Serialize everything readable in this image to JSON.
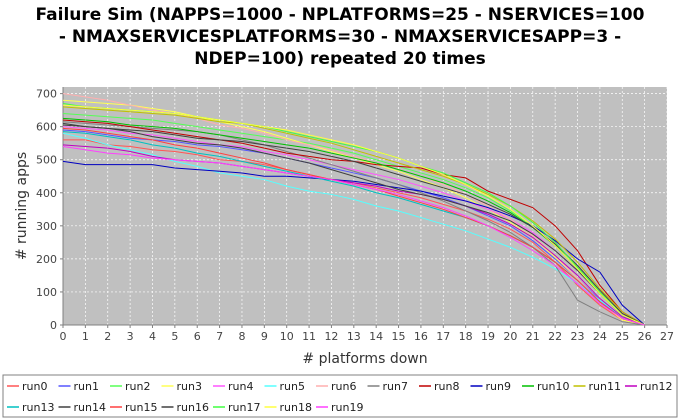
{
  "chart_data": {
    "type": "line",
    "title_lines": [
      "Failure Sim (NAPPS=1000 - NPLATFORMS=25 - NSERVICES=100",
      "- NMAXSERVICESPLATFORMS=30 - NMAXSERVICESAPP=3 -",
      "NDEP=100) repeated 20 times"
    ],
    "xlabel": "# platforms down",
    "ylabel": "# running apps",
    "xlim": [
      0,
      27
    ],
    "ylim": [
      0,
      720
    ],
    "x_ticks": [
      0,
      1,
      2,
      3,
      4,
      5,
      6,
      7,
      8,
      9,
      10,
      11,
      12,
      13,
      14,
      15,
      16,
      17,
      18,
      19,
      20,
      21,
      22,
      23,
      24,
      25,
      26,
      27
    ],
    "y_ticks": [
      0,
      100,
      200,
      300,
      400,
      500,
      600,
      700
    ],
    "grid": true,
    "background": "#c0c0c0",
    "legend_position": "bottom",
    "x": [
      0,
      1,
      2,
      3,
      4,
      5,
      6,
      7,
      8,
      9,
      10,
      11,
      12,
      13,
      14,
      15,
      16,
      17,
      18,
      19,
      20,
      21,
      22,
      23,
      24,
      25,
      26
    ],
    "series": [
      {
        "name": "run0",
        "color": "#ff5555",
        "values": [
          560,
          560,
          545,
          540,
          530,
          525,
          515,
          500,
          495,
          485,
          470,
          455,
          440,
          430,
          415,
          400,
          385,
          365,
          345,
          320,
          290,
          250,
          190,
          120,
          60,
          15,
          0
        ]
      },
      {
        "name": "run1",
        "color": "#5555ff",
        "values": [
          590,
          585,
          575,
          565,
          560,
          555,
          545,
          540,
          530,
          520,
          505,
          490,
          475,
          460,
          445,
          425,
          405,
          385,
          360,
          330,
          300,
          255,
          200,
          140,
          75,
          20,
          0
        ]
      },
      {
        "name": "run2",
        "color": "#55ff55",
        "values": [
          640,
          635,
          630,
          625,
          620,
          610,
          600,
          590,
          580,
          570,
          560,
          550,
          535,
          520,
          500,
          480,
          460,
          440,
          415,
          385,
          345,
          300,
          240,
          170,
          95,
          30,
          0
        ]
      },
      {
        "name": "run3",
        "color": "#ffff55",
        "values": [
          680,
          675,
          670,
          665,
          655,
          645,
          630,
          615,
          600,
          585,
          565,
          545,
          525,
          505,
          485,
          465,
          440,
          415,
          385,
          350,
          310,
          265,
          205,
          140,
          70,
          15,
          0
        ]
      },
      {
        "name": "run4",
        "color": "#ff55ff",
        "values": [
          600,
          595,
          590,
          580,
          575,
          565,
          555,
          545,
          540,
          525,
          515,
          500,
          485,
          470,
          455,
          440,
          420,
          400,
          375,
          350,
          320,
          280,
          225,
          165,
          95,
          30,
          0
        ]
      },
      {
        "name": "run5",
        "color": "#55ffff",
        "values": [
          580,
          565,
          545,
          530,
          515,
          495,
          480,
          460,
          450,
          440,
          420,
          405,
          395,
          380,
          360,
          345,
          325,
          305,
          285,
          260,
          235,
          205,
          170,
          125,
          75,
          25,
          0
        ]
      },
      {
        "name": "run6",
        "color": "#ffafaf",
        "values": [
          700,
          690,
          680,
          665,
          650,
          640,
          625,
          605,
          595,
          580,
          560,
          545,
          530,
          510,
          490,
          470,
          450,
          425,
          395,
          360,
          320,
          270,
          210,
          140,
          70,
          20,
          0
        ]
      },
      {
        "name": "run7",
        "color": "#808080",
        "values": [
          615,
          610,
          605,
          600,
          595,
          590,
          585,
          575,
          560,
          545,
          525,
          505,
          485,
          465,
          445,
          425,
          400,
          375,
          345,
          315,
          280,
          235,
          180,
          75,
          40,
          10,
          0
        ]
      },
      {
        "name": "run8",
        "color": "#c00000",
        "values": [
          620,
          615,
          610,
          600,
          590,
          580,
          570,
          560,
          550,
          535,
          520,
          510,
          500,
          495,
          485,
          480,
          475,
          455,
          445,
          405,
          380,
          355,
          300,
          225,
          120,
          40,
          0
        ]
      },
      {
        "name": "run9",
        "color": "#0000c0",
        "values": [
          495,
          485,
          485,
          485,
          485,
          475,
          470,
          465,
          460,
          450,
          450,
          445,
          440,
          435,
          425,
          415,
          405,
          390,
          375,
          355,
          330,
          300,
          255,
          200,
          160,
          60,
          0
        ]
      },
      {
        "name": "run10",
        "color": "#00c000",
        "values": [
          625,
          620,
          615,
          605,
          600,
          595,
          585,
          575,
          565,
          555,
          545,
          535,
          520,
          505,
          490,
          470,
          450,
          430,
          405,
          375,
          340,
          295,
          240,
          170,
          95,
          30,
          0
        ]
      },
      {
        "name": "run11",
        "color": "#c0c000",
        "values": [
          660,
          655,
          650,
          645,
          640,
          635,
          625,
          615,
          610,
          595,
          580,
          565,
          550,
          530,
          510,
          490,
          470,
          450,
          425,
          395,
          360,
          315,
          260,
          190,
          110,
          40,
          0
        ]
      },
      {
        "name": "run12",
        "color": "#c000c0",
        "values": [
          545,
          540,
          535,
          525,
          510,
          500,
          495,
          490,
          480,
          470,
          460,
          450,
          440,
          430,
          420,
          405,
          395,
          380,
          360,
          335,
          305,
          265,
          210,
          150,
          80,
          25,
          0
        ]
      },
      {
        "name": "run13",
        "color": "#00c0c0",
        "values": [
          585,
          580,
          570,
          560,
          545,
          535,
          520,
          510,
          495,
          480,
          465,
          450,
          435,
          420,
          400,
          385,
          365,
          345,
          325,
          300,
          270,
          235,
          190,
          135,
          70,
          20,
          0
        ]
      },
      {
        "name": "run14",
        "color": "#404040",
        "values": [
          605,
          600,
          595,
          590,
          585,
          575,
          565,
          560,
          555,
          545,
          535,
          525,
          510,
          495,
          475,
          455,
          435,
          415,
          395,
          365,
          335,
          295,
          245,
          180,
          105,
          35,
          0
        ]
      },
      {
        "name": "run15",
        "color": "#ff4040",
        "values": [
          595,
          590,
          580,
          570,
          560,
          545,
          535,
          520,
          505,
          490,
          470,
          455,
          440,
          425,
          410,
          390,
          370,
          350,
          325,
          300,
          270,
          235,
          190,
          135,
          70,
          20,
          0
        ]
      },
      {
        "name": "run16",
        "color": "#404040",
        "values": [
          610,
          600,
          595,
          585,
          570,
          560,
          550,
          545,
          535,
          520,
          505,
          490,
          470,
          450,
          430,
          410,
          395,
          380,
          360,
          340,
          315,
          275,
          225,
          165,
          95,
          30,
          0
        ]
      },
      {
        "name": "run17",
        "color": "#40ff40",
        "values": [
          670,
          660,
          655,
          650,
          645,
          640,
          630,
          620,
          610,
          600,
          585,
          570,
          555,
          540,
          525,
          505,
          480,
          460,
          430,
          400,
          360,
          310,
          250,
          175,
          100,
          30,
          0
        ]
      },
      {
        "name": "run18",
        "color": "#ffff40",
        "values": [
          665,
          660,
          655,
          650,
          645,
          640,
          630,
          620,
          610,
          600,
          590,
          575,
          560,
          545,
          525,
          505,
          480,
          455,
          425,
          390,
          350,
          300,
          240,
          170,
          95,
          30,
          0
        ]
      },
      {
        "name": "run19",
        "color": "#ff40ff",
        "values": [
          540,
          530,
          520,
          515,
          505,
          500,
          495,
          490,
          480,
          470,
          460,
          450,
          440,
          425,
          410,
          395,
          375,
          355,
          330,
          300,
          265,
          225,
          180,
          125,
          65,
          20,
          0
        ]
      }
    ]
  }
}
